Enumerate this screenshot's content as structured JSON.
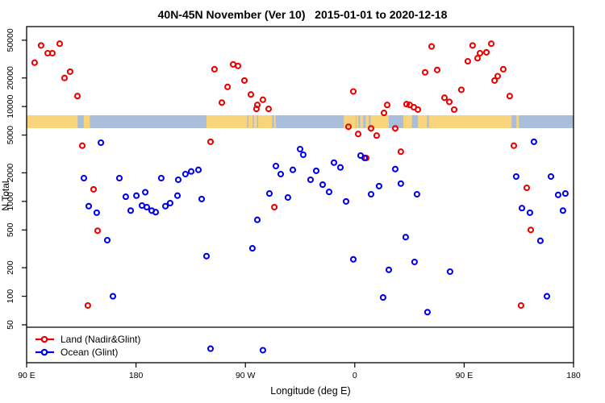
{
  "title": "40N-45N November (Ver 10)   2015-01-01 to 2020-12-18",
  "axes": {
    "y_label": "N Total",
    "x_label": "Longitude (deg E)",
    "y_scale": "log",
    "y_ticks": [
      {
        "value": 50000,
        "label": "50000"
      },
      {
        "value": 20000,
        "label": "20000"
      },
      {
        "value": 10000,
        "label": "10000"
      },
      {
        "value": 5000,
        "label": "5000"
      },
      {
        "value": 2000,
        "label": "2000"
      },
      {
        "value": 1000,
        "label": "1000"
      },
      {
        "value": 500,
        "label": "500"
      },
      {
        "value": 200,
        "label": "200"
      },
      {
        "value": 100,
        "label": "100"
      },
      {
        "value": 50,
        "label": "50"
      }
    ],
    "x_ticks": [
      {
        "lon": 90,
        "label": "90 E"
      },
      {
        "lon": 180,
        "label": "180"
      },
      {
        "lon": 270,
        "label": "90 W"
      },
      {
        "lon": 360,
        "label": "0"
      },
      {
        "lon": 450,
        "label": "90 E"
      },
      {
        "lon": 540,
        "label": "180"
      }
    ]
  },
  "legend": [
    {
      "label": "Land (Nadir&Glint)",
      "color": "#ee0000"
    },
    {
      "label": "Ocean (Glint)",
      "color": "#0000ee"
    }
  ],
  "map_strip": {
    "water_color": "#a9bedb",
    "land_color": "#f8d47c",
    "extent_lon": [
      90,
      540
    ],
    "land_segments_lon": [
      [
        90,
        132
      ],
      [
        137,
        142
      ],
      [
        238,
        271.5
      ],
      [
        272.5,
        276
      ],
      [
        277,
        279.5
      ],
      [
        280.5,
        292
      ],
      [
        293.5,
        295
      ],
      [
        351,
        361
      ],
      [
        361.5,
        363
      ],
      [
        364.5,
        367
      ],
      [
        369,
        371.5
      ],
      [
        373,
        388
      ],
      [
        400,
        407
      ],
      [
        412,
        419.5
      ],
      [
        421,
        489
      ],
      [
        493,
        495
      ]
    ]
  },
  "chart_data": {
    "type": "scatter",
    "title": "40N-45N November (Ver 10)   2015-01-01 to 2020-12-18",
    "xlabel": "Longitude (deg E)",
    "ylabel": "N Total",
    "x_axis_note": "axis runs eastward from 90E; values >180 wrap west (270=90W, 360=0, 450=90E, 540=180)",
    "x_range": [
      90,
      540
    ],
    "y_range_log": [
      50,
      50000
    ],
    "cutoff_line_n": 47,
    "series": [
      {
        "name": "Land (Nadir&Glint)",
        "color": "#ee0000",
        "points": [
          [
            101.9,
            44000
          ],
          [
            96.6,
            29000
          ],
          [
            107.3,
            36500
          ],
          [
            111.2,
            36500
          ],
          [
            117.2,
            46000
          ],
          [
            121.2,
            20000
          ],
          [
            125.8,
            23300
          ],
          [
            131.8,
            12900
          ],
          [
            135.8,
            3870
          ],
          [
            145.1,
            1340
          ],
          [
            148.4,
            490
          ],
          [
            140.4,
            80
          ],
          [
            244.6,
            24700
          ],
          [
            259.9,
            27800
          ],
          [
            263.9,
            26800
          ],
          [
            269.2,
            18800
          ],
          [
            255.3,
            16100
          ],
          [
            274.5,
            13400
          ],
          [
            250.6,
            11000
          ],
          [
            279.8,
            10400
          ],
          [
            284.4,
            11800
          ],
          [
            279.1,
            9450
          ],
          [
            289.1,
            9450
          ],
          [
            241.3,
            4250
          ],
          [
            293.8,
            870
          ],
          [
            358.8,
            14400
          ],
          [
            354.8,
            6120
          ],
          [
            362.8,
            5140
          ],
          [
            373.4,
            5880
          ],
          [
            378.0,
            4940
          ],
          [
            386.7,
            10400
          ],
          [
            384.0,
            8570
          ],
          [
            369.4,
            2870
          ],
          [
            423.2,
            43000
          ],
          [
            457.0,
            44000
          ],
          [
            472.3,
            46000
          ],
          [
            463.0,
            36500
          ],
          [
            468.3,
            37300
          ],
          [
            453.0,
            30000
          ],
          [
            461.0,
            32300
          ],
          [
            417.9,
            22900
          ],
          [
            427.8,
            24300
          ],
          [
            477.6,
            20900
          ],
          [
            475.0,
            18800
          ],
          [
            482.2,
            24700
          ],
          [
            487.5,
            12900
          ],
          [
            447.7,
            15000
          ],
          [
            433.8,
            12400
          ],
          [
            437.8,
            11200
          ],
          [
            441.8,
            9270
          ],
          [
            402.6,
            10600
          ],
          [
            405.2,
            10400
          ],
          [
            408.6,
            9840
          ],
          [
            411.9,
            9270
          ],
          [
            393.3,
            5880
          ],
          [
            397.9,
            3340
          ],
          [
            490.9,
            3870
          ],
          [
            501.5,
            1390
          ],
          [
            504.8,
            500
          ],
          [
            496.8,
            80
          ]
        ]
      },
      {
        "name": "Ocean (Glint)",
        "color": "#0000ee",
        "points": [
          [
            151.1,
            4160
          ],
          [
            137.1,
            1760
          ],
          [
            166.3,
            1760
          ],
          [
            200.8,
            1760
          ],
          [
            214.8,
            1690
          ],
          [
            220.7,
            1940
          ],
          [
            225.4,
            2070
          ],
          [
            231.4,
            2150
          ],
          [
            141.1,
            890
          ],
          [
            147.7,
            760
          ],
          [
            171.6,
            1120
          ],
          [
            180.3,
            1150
          ],
          [
            187.6,
            1250
          ],
          [
            175.6,
            800
          ],
          [
            184.9,
            905
          ],
          [
            188.9,
            870
          ],
          [
            192.9,
            800
          ],
          [
            196.2,
            770
          ],
          [
            204.2,
            890
          ],
          [
            208.1,
            960
          ],
          [
            214.1,
            1150
          ],
          [
            234.0,
            1060
          ],
          [
            156.4,
            390
          ],
          [
            161.0,
            100
          ],
          [
            238.0,
            265
          ],
          [
            241.3,
            28
          ],
          [
            284.4,
            27
          ],
          [
            315.0,
            3560
          ],
          [
            317.6,
            3100
          ],
          [
            295.1,
            2360
          ],
          [
            299.1,
            1940
          ],
          [
            309.0,
            2150
          ],
          [
            328.3,
            2100
          ],
          [
            323.6,
            1690
          ],
          [
            333.6,
            1500
          ],
          [
            338.9,
            1260
          ],
          [
            342.9,
            2560
          ],
          [
            348.2,
            2280
          ],
          [
            364.8,
            3040
          ],
          [
            368.1,
            2870
          ],
          [
            380.0,
            1450
          ],
          [
            373.4,
            1190
          ],
          [
            289.8,
            1210
          ],
          [
            305.0,
            1100
          ],
          [
            352.8,
            1000
          ],
          [
            275.8,
            320
          ],
          [
            279.8,
            640
          ],
          [
            358.8,
            245
          ],
          [
            388.0,
            190
          ],
          [
            383.3,
            97
          ],
          [
            507.4,
            4250
          ],
          [
            393.3,
            2190
          ],
          [
            397.9,
            1540
          ],
          [
            411.2,
            1190
          ],
          [
            492.8,
            1830
          ],
          [
            521.4,
            1830
          ],
          [
            527.3,
            1170
          ],
          [
            533.3,
            1210
          ],
          [
            497.5,
            850
          ],
          [
            504.1,
            760
          ],
          [
            531.3,
            800
          ],
          [
            512.7,
            385
          ],
          [
            401.9,
            420
          ],
          [
            409.2,
            230
          ],
          [
            438.4,
            182
          ],
          [
            518.1,
            100
          ],
          [
            419.8,
            68
          ]
        ]
      }
    ]
  }
}
